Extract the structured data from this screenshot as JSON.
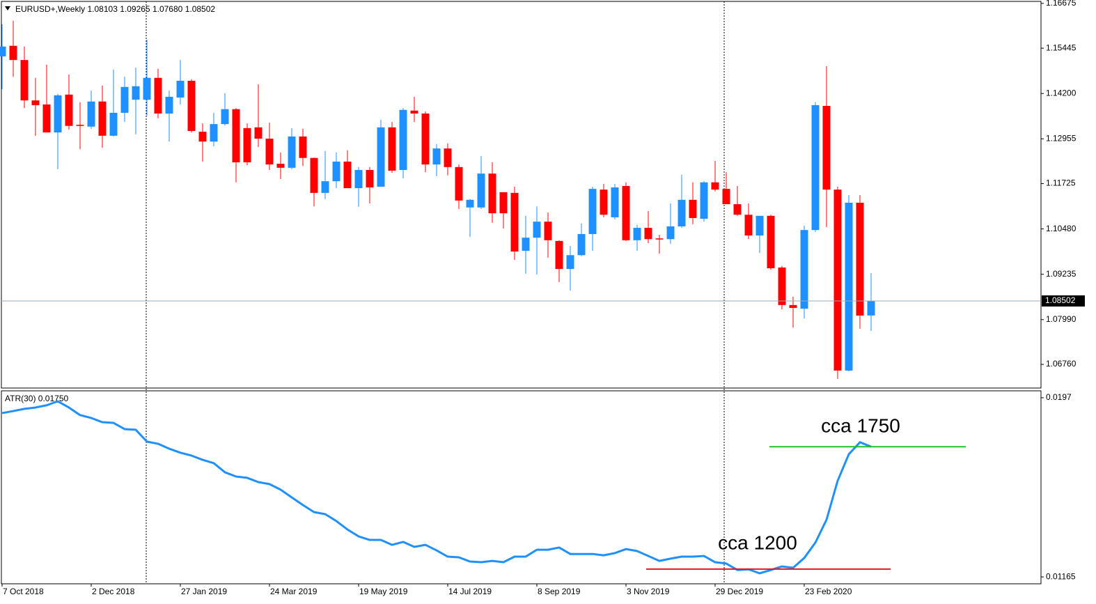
{
  "chart_data": [
    {
      "type": "candlestick",
      "title": "EURUSD+,Weekly",
      "last_bar_labels": [
        "1.08103",
        "1.09265",
        "1.07680",
        "1.08502"
      ],
      "categories": [
        "7 Oct 2018",
        null,
        null,
        null,
        null,
        null,
        null,
        null,
        "2 Dec 2018",
        null,
        null,
        null,
        null,
        null,
        null,
        null,
        "27 Jan 2019",
        null,
        null,
        null,
        null,
        null,
        null,
        null,
        "24 Mar 2019",
        null,
        null,
        null,
        null,
        null,
        null,
        null,
        "19 May 2019",
        null,
        null,
        null,
        null,
        null,
        null,
        null,
        "14 Jul 2019",
        null,
        null,
        null,
        null,
        null,
        null,
        null,
        "8 Sep 2019",
        null,
        null,
        null,
        null,
        null,
        null,
        null,
        "3 Nov 2019",
        null,
        null,
        null,
        null,
        null,
        null,
        null,
        "29 Dec 2019",
        null,
        null,
        null,
        null,
        null,
        null,
        null,
        "23 Feb 2020",
        null,
        null,
        null,
        null,
        null,
        null
      ],
      "open": [
        1.1522,
        1.1551,
        1.1512,
        1.1401,
        1.139,
        1.1313,
        1.1417,
        1.1334,
        1.1329,
        1.1398,
        1.1304,
        1.1367,
        1.1403,
        1.1403,
        1.1463,
        1.1365,
        1.1409,
        1.1455,
        1.1315,
        1.1288,
        1.1336,
        1.1377,
        1.1325,
        1.1327,
        1.1296,
        1.1227,
        1.1216,
        1.1302,
        1.1243,
        1.1147,
        1.1179,
        1.1233,
        1.116,
        1.121,
        1.1164,
        1.1327,
        1.121,
        1.1373,
        1.1365,
        1.1225,
        1.1269,
        1.1218,
        1.1107,
        1.1107,
        1.12,
        1.1149,
        1.1147,
        1.0988,
        1.1024,
        1.1068,
        1.1015,
        1.0938,
        1.0976,
        1.1034,
        1.1156,
        1.108,
        1.1166,
        1.1017,
        1.1051,
        1.1022,
        1.102,
        1.1055,
        1.1128,
        1.1076,
        1.1176,
        1.1158,
        1.1116,
        1.1087,
        1.103,
        1.1084,
        1.0942,
        1.0839,
        1.0829,
        1.1045,
        1.1386,
        1.1156,
        1.0659,
        1.112,
        1.08103
      ],
      "high": [
        1.161,
        1.162,
        1.1549,
        1.1463,
        1.1499,
        1.1419,
        1.1472,
        1.1396,
        1.1428,
        1.1442,
        1.1486,
        1.1466,
        1.1491,
        1.1568,
        1.1488,
        1.1428,
        1.1512,
        1.1459,
        1.1338,
        1.1367,
        1.1421,
        1.138,
        1.1338,
        1.1445,
        1.134,
        1.1258,
        1.1325,
        1.1323,
        1.1244,
        1.1262,
        1.1258,
        1.1264,
        1.1218,
        1.1218,
        1.1348,
        1.1342,
        1.138,
        1.1411,
        1.1371,
        1.1281,
        1.1283,
        1.1225,
        1.113,
        1.1248,
        1.1231,
        1.1149,
        1.1164,
        1.1084,
        1.111,
        1.1093,
        1.1017,
        1.1001,
        1.1063,
        1.1164,
        1.1172,
        1.1172,
        1.1176,
        1.1059,
        1.1097,
        1.1032,
        1.1118,
        1.1197,
        1.1176,
        1.1179,
        1.1235,
        1.1204,
        1.1166,
        1.1118,
        1.1084,
        1.1087,
        1.0946,
        1.0862,
        1.1057,
        1.1396,
        1.1495,
        1.1164,
        1.1141,
        1.1141,
        1.09265
      ],
      "low": [
        1.1432,
        1.1466,
        1.138,
        1.1304,
        1.1313,
        1.1212,
        1.1321,
        1.1267,
        1.1323,
        1.1271,
        1.1302,
        1.1342,
        1.1308,
        1.1359,
        1.1352,
        1.1288,
        1.139,
        1.1313,
        1.1233,
        1.1275,
        1.1332,
        1.1176,
        1.1223,
        1.1273,
        1.121,
        1.1185,
        1.1212,
        1.1221,
        1.111,
        1.113,
        1.116,
        1.116,
        1.1109,
        1.1118,
        1.1164,
        1.1202,
        1.1187,
        1.1342,
        1.1204,
        1.1193,
        1.1195,
        1.1103,
        1.1026,
        1.1103,
        1.1065,
        1.1049,
        1.0963,
        1.0925,
        1.0923,
        1.0969,
        1.0902,
        1.0879,
        1.0973,
        1.0988,
        1.108,
        1.1074,
        1.1015,
        1.0988,
        1.1009,
        1.098,
        1.1007,
        1.1051,
        1.1061,
        1.1068,
        1.1151,
        1.1116,
        1.1084,
        1.102,
        1.0982,
        1.0936,
        1.0827,
        1.0777,
        1.0802,
        1.104,
        1.1053,
        1.0636,
        1.0657,
        1.0774,
        1.0768
      ],
      "close": [
        1.1549,
        1.1512,
        1.1401,
        1.1388,
        1.1313,
        1.1415,
        1.1331,
        1.1331,
        1.1398,
        1.1304,
        1.1367,
        1.1438,
        1.144,
        1.1463,
        1.1365,
        1.1411,
        1.1455,
        1.1317,
        1.1288,
        1.1336,
        1.1377,
        1.1231,
        1.1231,
        1.1296,
        1.1225,
        1.1216,
        1.1302,
        1.1243,
        1.1147,
        1.1179,
        1.1233,
        1.116,
        1.121,
        1.1162,
        1.1327,
        1.1208,
        1.1375,
        1.1365,
        1.1225,
        1.1269,
        1.1218,
        1.1126,
        1.1128,
        1.12,
        1.1091,
        1.1091,
        1.0986,
        1.1024,
        1.1068,
        1.1017,
        1.0938,
        1.0976,
        1.1034,
        1.1158,
        1.1087,
        1.1162,
        1.1017,
        1.1051,
        1.102,
        1.1019,
        1.1055,
        1.1128,
        1.1078,
        1.1176,
        1.1156,
        1.1116,
        1.1087,
        1.103,
        1.1084,
        1.094,
        1.0839,
        1.0831,
        1.1045,
        1.1388,
        1.1156,
        1.0659,
        1.112,
        1.081,
        1.08502
      ],
      "up_color": "#1e90ff",
      "down_color": "#ff0000",
      "ylim": [
        1.0611,
        1.1673
      ],
      "yticks": [
        1.16675,
        1.15445,
        {
          "value": 1.142,
          "label": "1.14200"
        },
        1.12955,
        1.11725,
        {
          "value": 1.1048,
          "label": "1.10480"
        },
        1.09235,
        {
          "value": 1.0799,
          "label": "1.07990"
        },
        {
          "value": 1.0676,
          "label": "1.06760"
        }
      ]
    },
    {
      "type": "line",
      "title": "ATR(30)",
      "last_value": {
        "value": 0.0175,
        "label": "0.01750"
      },
      "values": [
        0.01901,
        0.0191,
        0.0192,
        0.01926,
        0.01936,
        0.01954,
        0.01926,
        0.01892,
        0.01879,
        0.0186,
        0.01857,
        0.01829,
        0.01826,
        0.01773,
        0.01763,
        0.01741,
        0.01723,
        0.0171,
        0.01691,
        0.01676,
        0.01635,
        0.01616,
        0.0161,
        0.01591,
        0.01582,
        0.01557,
        0.01522,
        0.01488,
        0.01456,
        0.01447,
        0.01416,
        0.01378,
        0.01347,
        0.01331,
        0.01331,
        0.01309,
        0.01322,
        0.013,
        0.01309,
        0.01284,
        0.01256,
        0.01253,
        0.01234,
        0.01231,
        0.01237,
        0.01231,
        0.01256,
        0.01256,
        0.01287,
        0.01287,
        0.01297,
        0.01268,
        0.01268,
        0.01268,
        0.01262,
        0.01272,
        0.0129,
        0.01281,
        0.01259,
        0.01237,
        0.01247,
        0.01256,
        0.01256,
        0.01259,
        0.01231,
        0.01225,
        0.01196,
        0.01199,
        0.01181,
        0.01196,
        0.01212,
        0.01206,
        0.0125,
        0.01319,
        0.01422,
        0.01597,
        0.01716,
        0.0177,
        0.0175
      ],
      "color": "#1e90ff",
      "ylim": [
        0.01134,
        0.02001
      ],
      "yticks": [
        0.0197,
        0.01165
      ],
      "annotations": [
        {
          "text": "cca 1750",
          "level": 0.0175,
          "color": "#22c02c"
        },
        {
          "text": "cca 1200",
          "level": 0.012,
          "color": "#e8141e"
        }
      ]
    }
  ]
}
